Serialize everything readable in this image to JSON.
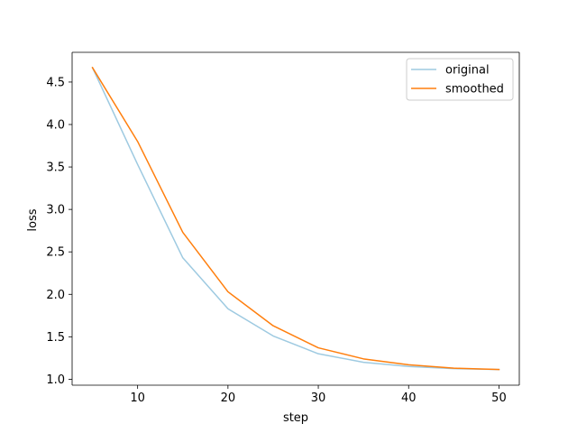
{
  "chart_data": {
    "type": "line",
    "xlabel": "step",
    "ylabel": "loss",
    "xlim": [
      2.75,
      52.25
    ],
    "ylim": [
      0.93,
      4.85
    ],
    "x_ticks": [
      10,
      20,
      30,
      40,
      50
    ],
    "y_ticks": [
      1.0,
      1.5,
      2.0,
      2.5,
      3.0,
      3.5,
      4.0,
      4.5
    ],
    "grid": false,
    "legend_position": "top-right",
    "series": [
      {
        "name": "original",
        "color": "#9ecae1",
        "x": [
          5,
          10,
          15,
          20,
          25,
          30,
          35,
          40,
          45,
          50
        ],
        "values": [
          4.67,
          3.53,
          2.43,
          1.83,
          1.51,
          1.3,
          1.2,
          1.15,
          1.125,
          1.115
        ]
      },
      {
        "name": "smoothed",
        "color": "#ff7f0e",
        "x": [
          5,
          10,
          15,
          20,
          25,
          30,
          35,
          40,
          45,
          50
        ],
        "values": [
          4.67,
          3.8,
          2.73,
          2.03,
          1.63,
          1.37,
          1.24,
          1.17,
          1.13,
          1.115
        ]
      }
    ]
  }
}
